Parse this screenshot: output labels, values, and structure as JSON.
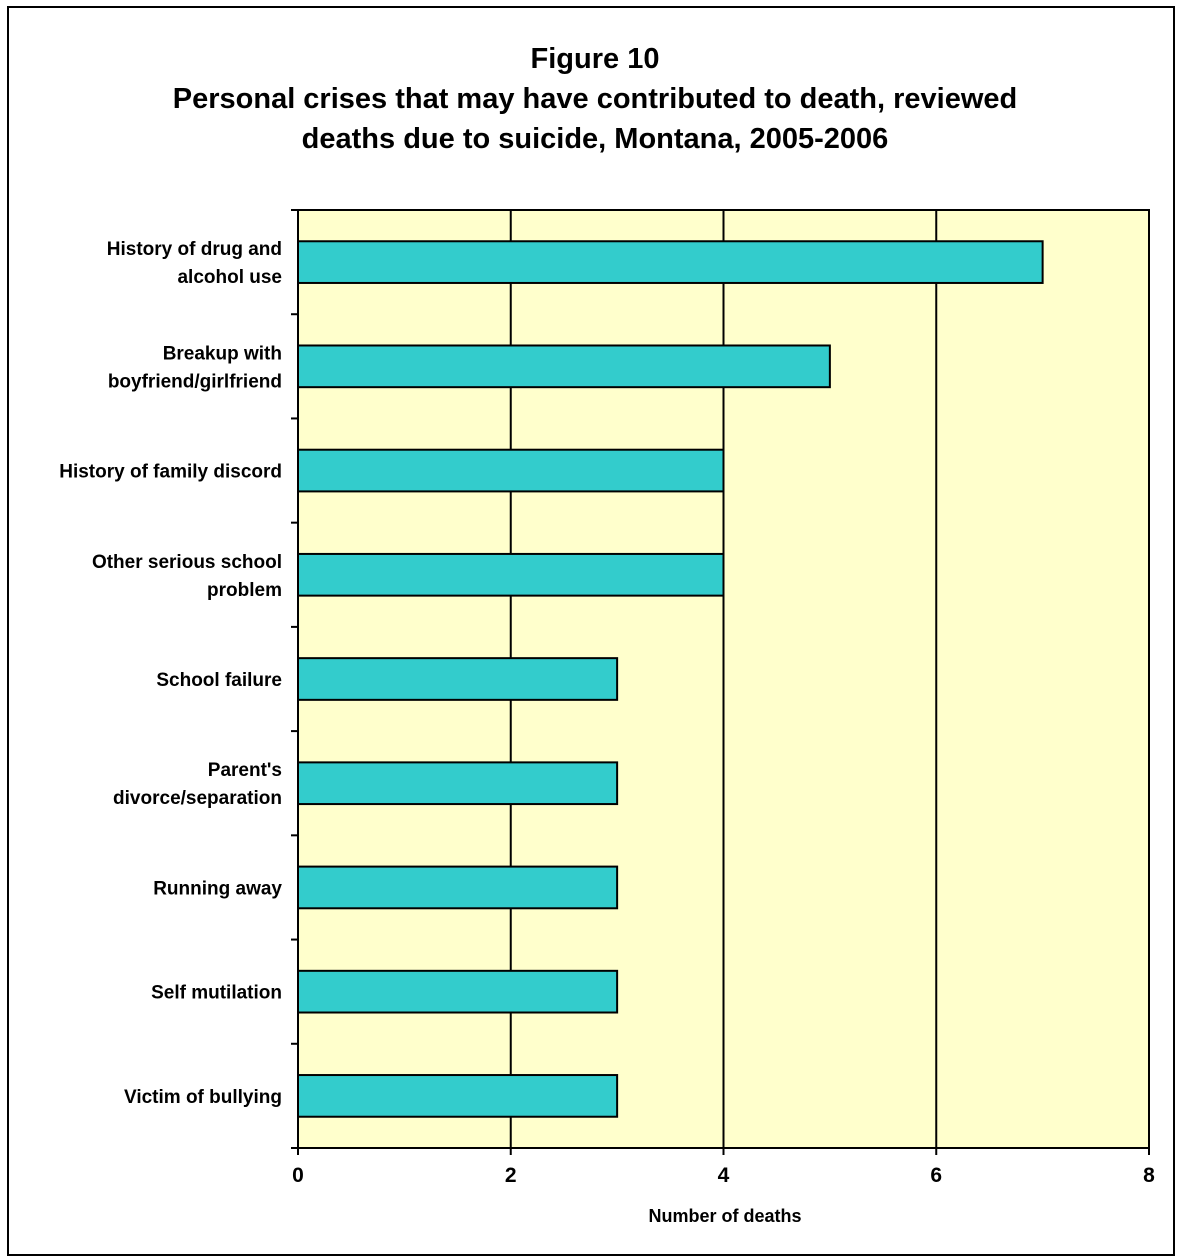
{
  "chart_data": {
    "type": "bar",
    "orientation": "horizontal",
    "title_lines": [
      "Figure 10",
      "Personal crises that may have contributed to death, reviewed",
      "deaths due to suicide, Montana, 2005-2006"
    ],
    "categories": [
      [
        "History of drug and",
        "alcohol use"
      ],
      [
        "Breakup with",
        "boyfriend/girlfriend"
      ],
      [
        "History of family discord"
      ],
      [
        "Other serious school",
        "problem"
      ],
      [
        "School failure"
      ],
      [
        "Parent's",
        "divorce/separation"
      ],
      [
        "Running away"
      ],
      [
        "Self mutilation"
      ],
      [
        "Victim of bullying"
      ]
    ],
    "values": [
      7,
      5,
      4,
      4,
      3,
      3,
      3,
      3,
      3
    ],
    "xlim": [
      0,
      8
    ],
    "xticks": [
      "0",
      "2",
      "4",
      "6",
      "8"
    ],
    "xlabel": "Number of deaths",
    "ylabel": "",
    "grid": "vertical",
    "colors": {
      "bar": "#33cccc",
      "plot_background": "#ffffcc",
      "outline": "#000000"
    }
  }
}
